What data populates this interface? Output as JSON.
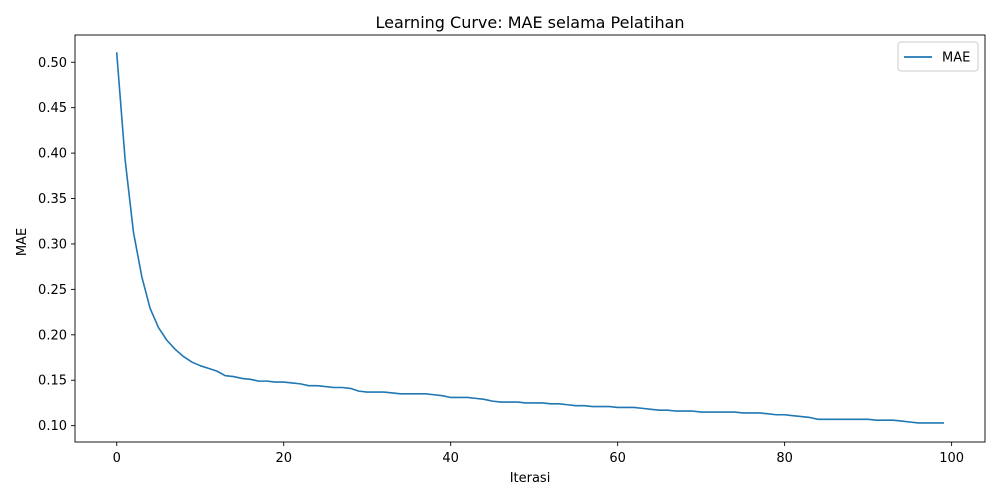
{
  "chart_data": {
    "type": "line",
    "title": "Learning Curve: MAE selama Pelatihan",
    "xlabel": "Iterasi",
    "ylabel": "MAE",
    "xlim": [
      -5,
      104
    ],
    "ylim": [
      0.082,
      0.53
    ],
    "xticks": [
      0,
      20,
      40,
      60,
      80,
      100
    ],
    "xtick_labels": [
      "0",
      "20",
      "40",
      "60",
      "80",
      "100"
    ],
    "yticks": [
      0.1,
      0.15,
      0.2,
      0.25,
      0.3,
      0.35,
      0.4,
      0.45,
      0.5
    ],
    "ytick_labels": [
      "0.10",
      "0.15",
      "0.20",
      "0.25",
      "0.30",
      "0.35",
      "0.40",
      "0.45",
      "0.50"
    ],
    "grid": false,
    "legend_position": "top-right",
    "series": [
      {
        "name": "MAE",
        "color": "#1f77b4",
        "x": [
          0,
          1,
          2,
          3,
          4,
          5,
          6,
          7,
          8,
          9,
          10,
          11,
          12,
          13,
          14,
          15,
          16,
          17,
          18,
          19,
          20,
          21,
          22,
          23,
          24,
          25,
          26,
          27,
          28,
          29,
          30,
          31,
          32,
          33,
          34,
          35,
          36,
          37,
          38,
          39,
          40,
          41,
          42,
          43,
          44,
          45,
          46,
          47,
          48,
          49,
          50,
          51,
          52,
          53,
          54,
          55,
          56,
          57,
          58,
          59,
          60,
          61,
          62,
          63,
          64,
          65,
          66,
          67,
          68,
          69,
          70,
          71,
          72,
          73,
          74,
          75,
          76,
          77,
          78,
          79,
          80,
          81,
          82,
          83,
          84,
          85,
          86,
          87,
          88,
          89,
          90,
          91,
          92,
          93,
          94,
          95,
          96,
          97,
          98,
          99
        ],
        "y": [
          0.51,
          0.393,
          0.313,
          0.264,
          0.229,
          0.208,
          0.194,
          0.184,
          0.176,
          0.17,
          0.166,
          0.163,
          0.16,
          0.155,
          0.154,
          0.152,
          0.151,
          0.149,
          0.149,
          0.148,
          0.148,
          0.147,
          0.146,
          0.144,
          0.144,
          0.143,
          0.142,
          0.142,
          0.141,
          0.138,
          0.137,
          0.137,
          0.137,
          0.136,
          0.135,
          0.135,
          0.135,
          0.135,
          0.134,
          0.133,
          0.131,
          0.131,
          0.131,
          0.13,
          0.129,
          0.127,
          0.126,
          0.126,
          0.126,
          0.125,
          0.125,
          0.125,
          0.124,
          0.124,
          0.123,
          0.122,
          0.122,
          0.121,
          0.121,
          0.121,
          0.12,
          0.12,
          0.12,
          0.119,
          0.118,
          0.117,
          0.117,
          0.116,
          0.116,
          0.116,
          0.115,
          0.115,
          0.115,
          0.115,
          0.115,
          0.114,
          0.114,
          0.114,
          0.113,
          0.112,
          0.112,
          0.111,
          0.11,
          0.109,
          0.107,
          0.107,
          0.107,
          0.107,
          0.107,
          0.107,
          0.107,
          0.106,
          0.106,
          0.106,
          0.105,
          0.104,
          0.103,
          0.103,
          0.103,
          0.103
        ]
      }
    ]
  }
}
